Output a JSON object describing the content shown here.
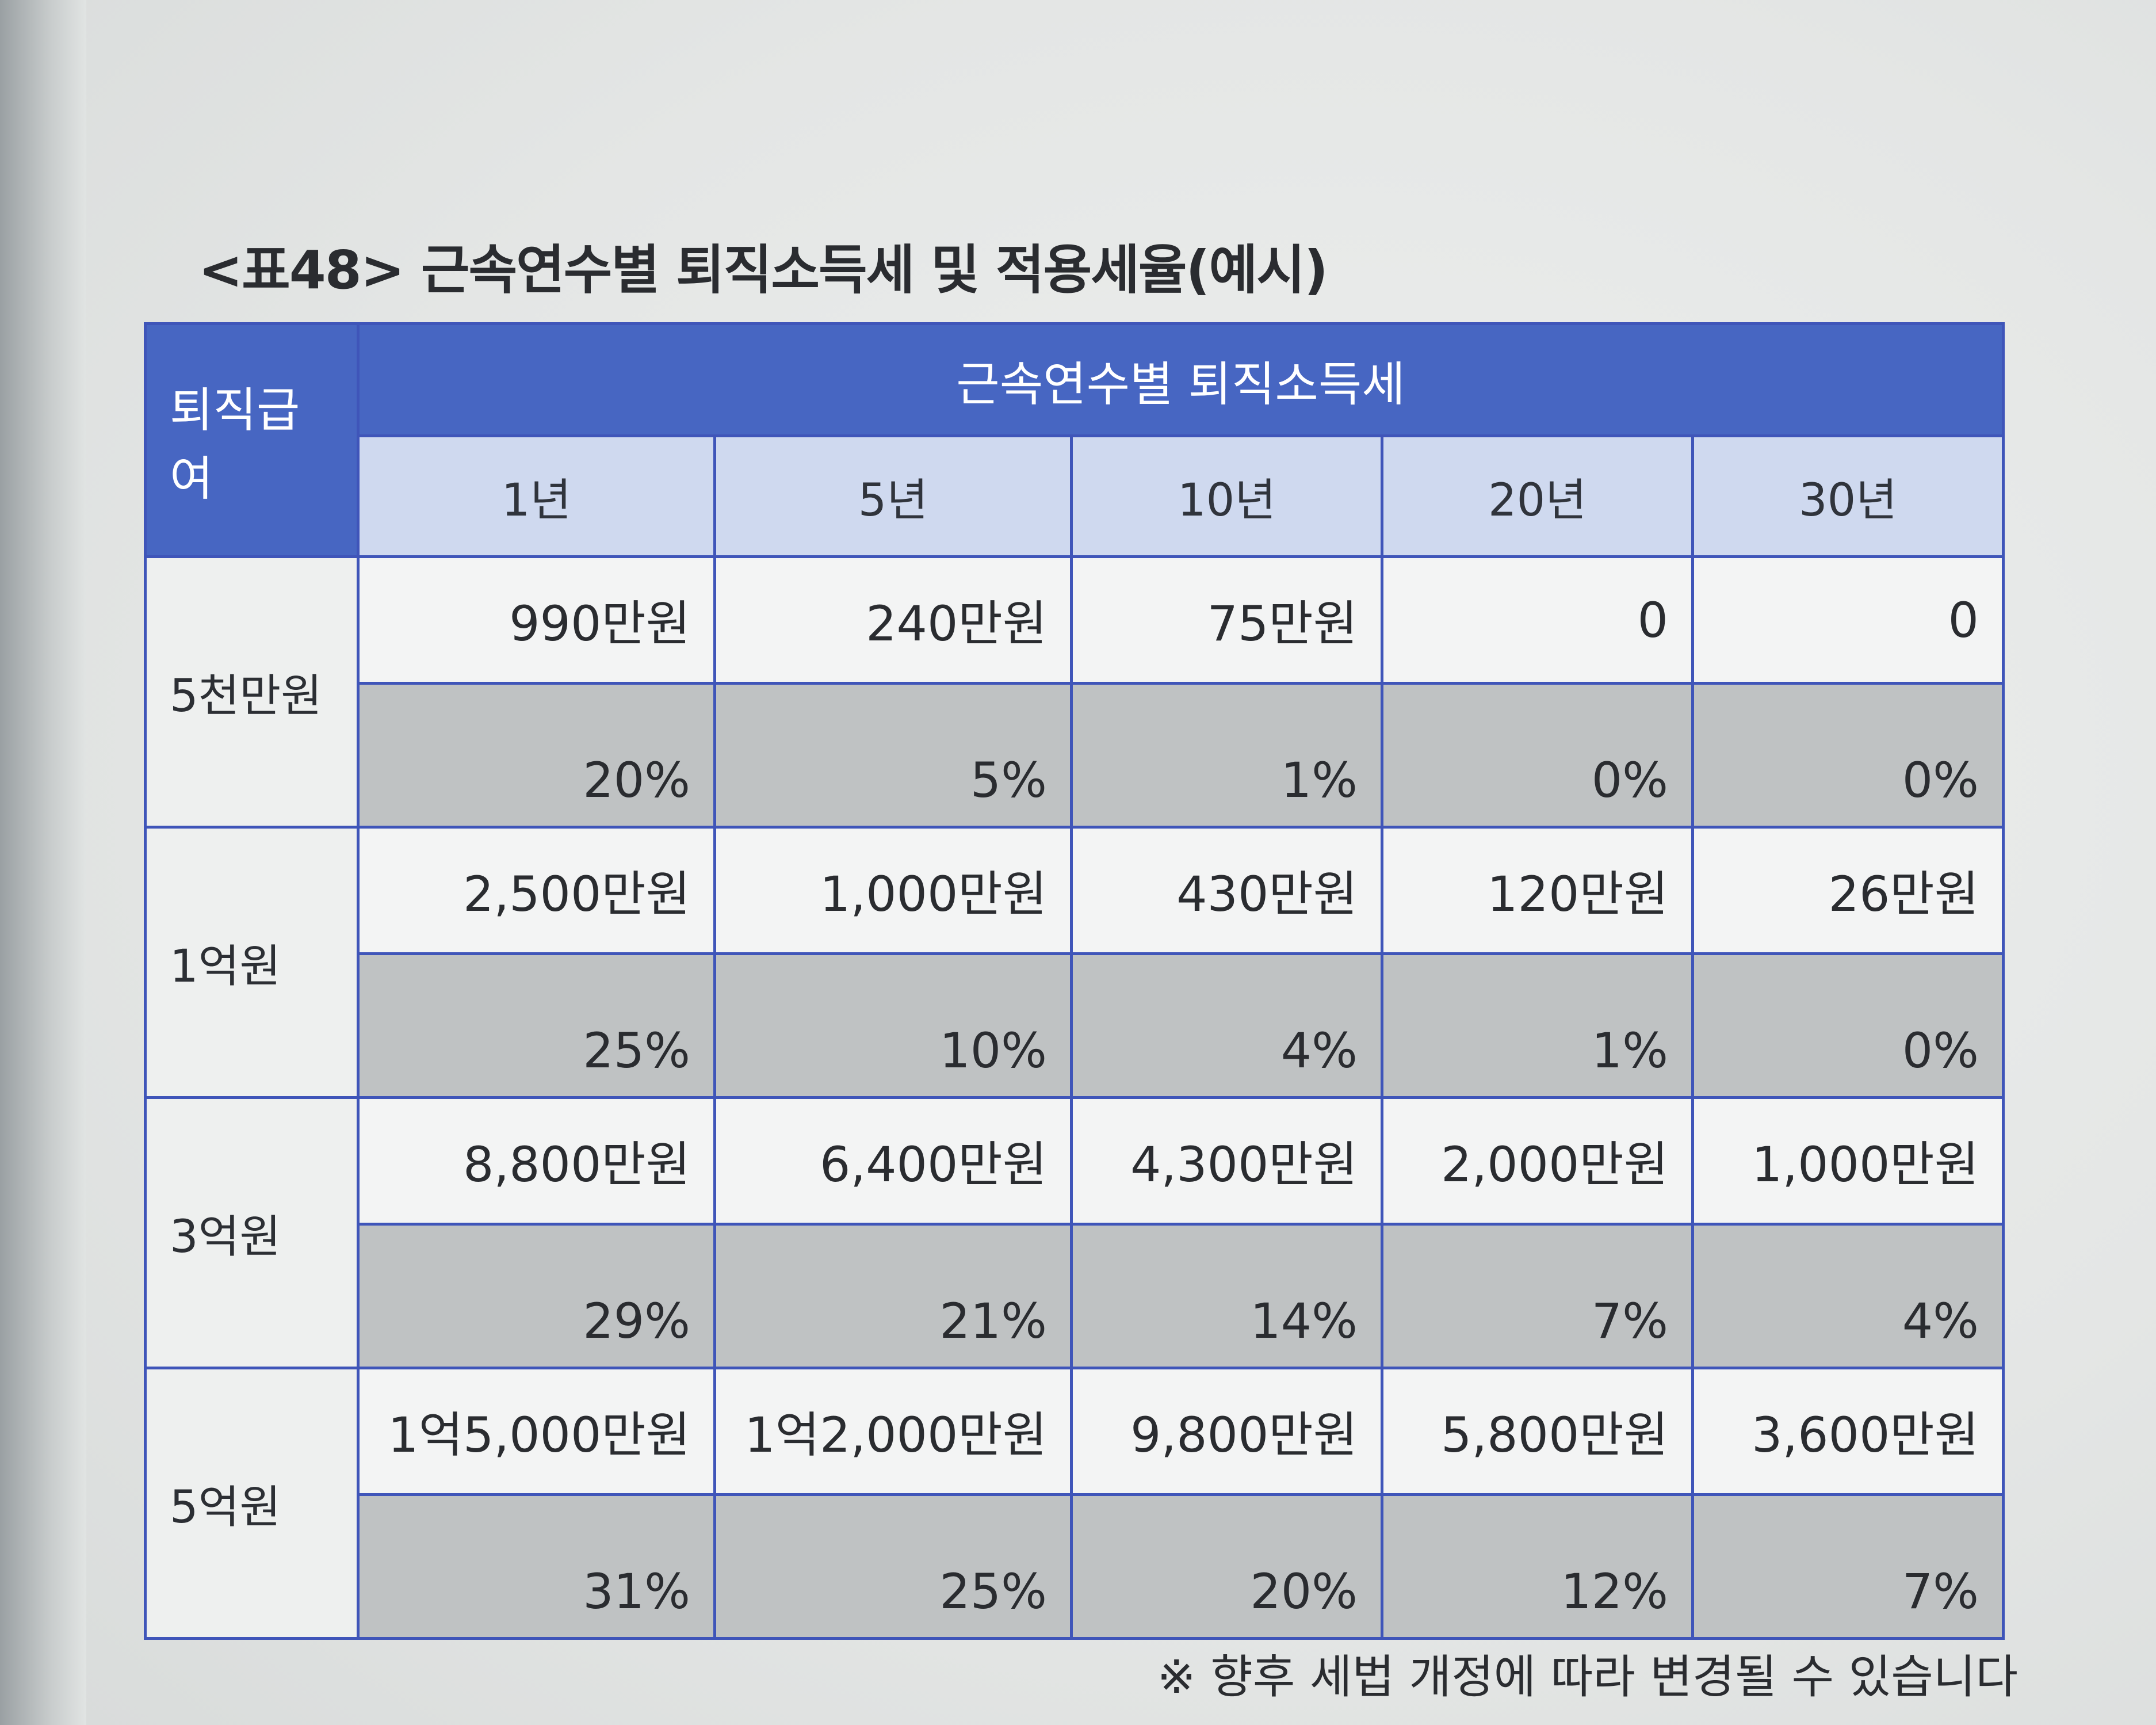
{
  "caption": "<표48> 근속연수별 퇴직소득세 및 적용세율(예시)",
  "header": {
    "row_label": "퇴직급여",
    "group_label": "근속연수별 퇴직소득세",
    "years": [
      "1년",
      "5년",
      "10년",
      "20년",
      "30년"
    ]
  },
  "rows": [
    {
      "label": "5천만원",
      "amounts": [
        "990만원",
        "240만원",
        "75만원",
        "0",
        "0"
      ],
      "rates": [
        "20%",
        "5%",
        "1%",
        "0%",
        "0%"
      ]
    },
    {
      "label": "1억원",
      "amounts": [
        "2,500만원",
        "1,000만원",
        "430만원",
        "120만원",
        "26만원"
      ],
      "rates": [
        "25%",
        "10%",
        "4%",
        "1%",
        "0%"
      ]
    },
    {
      "label": "3억원",
      "amounts": [
        "8,800만원",
        "6,400만원",
        "4,300만원",
        "2,000만원",
        "1,000만원"
      ],
      "rates": [
        "29%",
        "21%",
        "14%",
        "7%",
        "4%"
      ]
    },
    {
      "label": "5억원",
      "amounts": [
        "1억5,000만원",
        "1억2,000만원",
        "9,800만원",
        "5,800만원",
        "3,600만원"
      ],
      "rates": [
        "31%",
        "25%",
        "20%",
        "12%",
        "7%"
      ]
    }
  ],
  "footnote": "※ 향후 세법 개정에 따라 변경될 수 있습니다",
  "colors": {
    "header_blue": "#4766c2",
    "year_header": "#cfd9ef",
    "rate_row_gray": "#bfc2c3",
    "border_blue": "#3f55b9"
  }
}
